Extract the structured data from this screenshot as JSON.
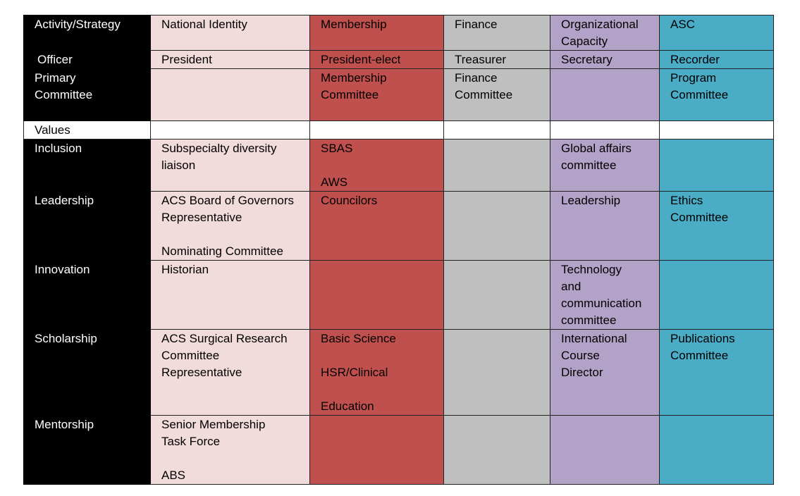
{
  "rows": [
    {
      "label": "Activity/Strategy",
      "cells": [
        "National Identity",
        "Membership",
        "Finance",
        "Organizational\nCapacity",
        "ASC"
      ]
    },
    {
      "label": "Officer",
      "cells": [
        "President",
        "President-elect",
        "Treasurer",
        "Secretary",
        "Recorder"
      ]
    },
    {
      "label": "Primary\nCommittee",
      "cells": [
        "",
        "Membership\nCommittee",
        "Finance\nCommittee",
        "",
        "Program\nCommittee"
      ]
    },
    {
      "label": "Values",
      "cells": [
        "",
        "",
        "",
        "",
        ""
      ]
    },
    {
      "label": "Inclusion",
      "cells": [
        "Subspecialty diversity\nliaison",
        "SBAS\n\nAWS",
        "",
        "Global affairs\ncommittee",
        ""
      ]
    },
    {
      "label": "Leadership",
      "cells": [
        "ACS Board of Governors\nRepresentative\n\nNominating Committee",
        "Councilors",
        "",
        "Leadership",
        "Ethics\nCommittee"
      ]
    },
    {
      "label": "Innovation",
      "cells": [
        "Historian",
        "",
        "",
        "Technology\nand\ncommunication\ncommittee",
        ""
      ]
    },
    {
      "label": "Scholarship",
      "cells": [
        "ACS Surgical Research\nCommittee\nRepresentative",
        "Basic Science\n\nHSR/Clinical\n\nEducation",
        "",
        "International\nCourse\nDirector",
        "Publications\nCommittee"
      ]
    },
    {
      "label": "Mentorship",
      "cells": [
        "Senior Membership\nTask Force\n\nABS",
        "",
        "",
        "",
        ""
      ]
    }
  ],
  "colors": {
    "label": "#000000",
    "national_identity": "#f2dcdb",
    "membership": "#c0504d",
    "finance": "#bfbfbf",
    "organizational_capacity": "#b2a2c7",
    "asc": "#4bacc6"
  }
}
